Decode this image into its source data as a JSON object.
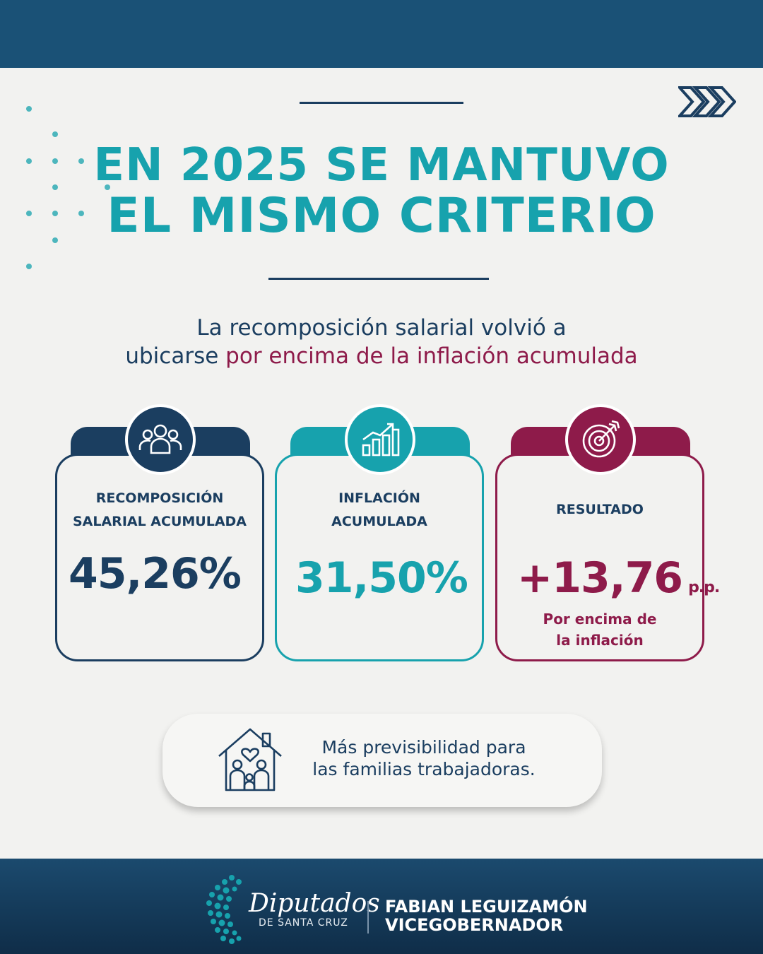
{
  "colors": {
    "navy": "#1b3e60",
    "teal": "#17a2ad",
    "maroon": "#8e1b4a",
    "top_band": "#1a5176",
    "background": "#f2f2f0"
  },
  "header": {
    "title_line1": "EN 2025 SE MANTUVO",
    "title_line2": "EL MISMO CRITERIO",
    "decor_icon": "triple-chevron-right-icon"
  },
  "subtitle": {
    "line1": "La recomposición salarial volvió a",
    "line2_prefix": "ubicarse ",
    "line2_highlight": "por encima de la inflación acumulada"
  },
  "cards": [
    {
      "icon": "people-group-icon",
      "label_line1": "RECOMPOSICIÓN",
      "label_line2": "SALARIAL ACUMULADA",
      "value": "45,26%",
      "color": "#1b3e60"
    },
    {
      "icon": "growth-chart-icon",
      "label_line1": "INFLACIÓN",
      "label_line2": "ACUMULADA",
      "value": "31,50%",
      "color": "#17a2ad"
    },
    {
      "icon": "target-arrow-icon",
      "label_line1": "RESULTADO",
      "value": "+13,76",
      "unit": "p.p.",
      "note_line1": "Por encima de",
      "note_line2": "la inflación",
      "color": "#8e1b4a"
    }
  ],
  "info": {
    "icon": "house-family-heart-icon",
    "line1": "Más previsibilidad para",
    "line2": "las familias trabajadoras."
  },
  "footer": {
    "logo_text": "Diputados",
    "logo_subtext": "DE SANTA CRUZ",
    "name": "FABIAN LEGUIZAMÓN",
    "role": "VICEGOBERNADOR"
  }
}
